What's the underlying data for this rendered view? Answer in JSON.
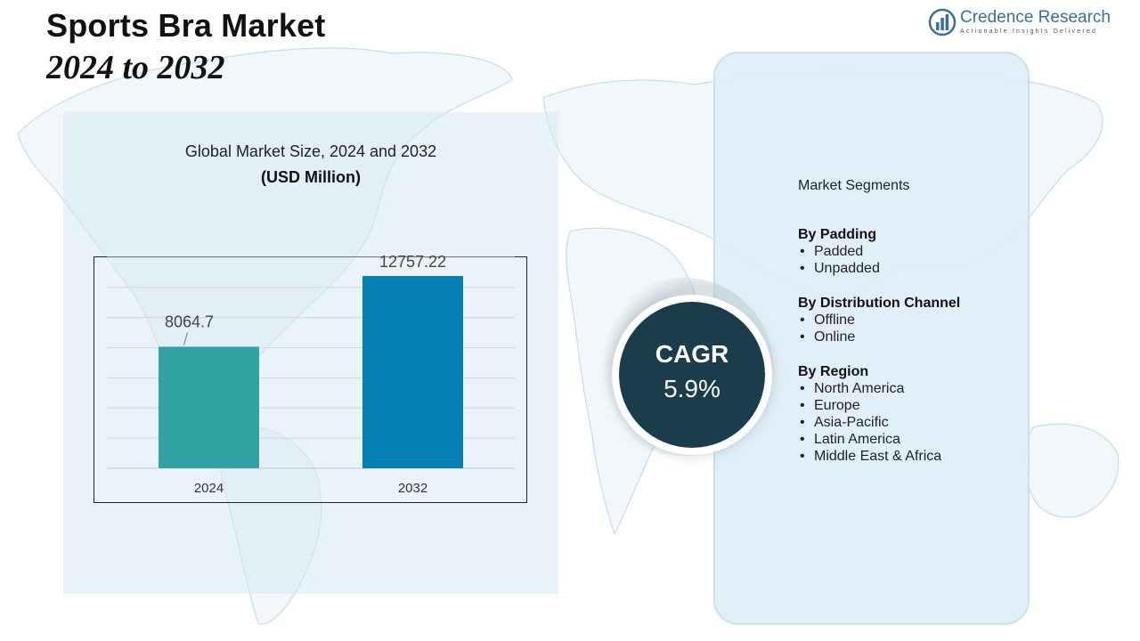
{
  "header": {
    "title_line1": "Sports Bra Market",
    "title_line2": "2024 to 2032"
  },
  "logo": {
    "name": "Credence Research",
    "tagline": "Actionable Insights Delivered",
    "icon": "bar-chart-globe-icon"
  },
  "chart_data": {
    "type": "bar",
    "title": "Global Market Size, 2024 and 2032",
    "subtitle": "(USD Million)",
    "categories": [
      "2024",
      "2032"
    ],
    "values": [
      8064.7,
      12757.22
    ],
    "value_labels": [
      "8064.7",
      "12757.22"
    ],
    "colors": [
      "#31a3a3",
      "#0580b3"
    ],
    "ylim": [
      0,
      14000
    ],
    "grid": true,
    "xlabel": "",
    "ylabel": ""
  },
  "cagr": {
    "label": "CAGR",
    "value": "5.9%"
  },
  "segments": {
    "heading": "Market Segments",
    "groups": [
      {
        "title": "By Padding",
        "items": [
          "Padded",
          "Unpadded"
        ]
      },
      {
        "title": "By Distribution Channel",
        "items": [
          "Offline",
          "Online"
        ]
      },
      {
        "title": "By Region",
        "items": [
          "North America",
          "Europe",
          "Asia-Pacific",
          "Latin America",
          "Middle East & Africa"
        ]
      }
    ]
  },
  "colors": {
    "cagr_circle": "#1b3d4b",
    "logo_text": "#3b6f96",
    "panel_bg": "#deeef7"
  }
}
